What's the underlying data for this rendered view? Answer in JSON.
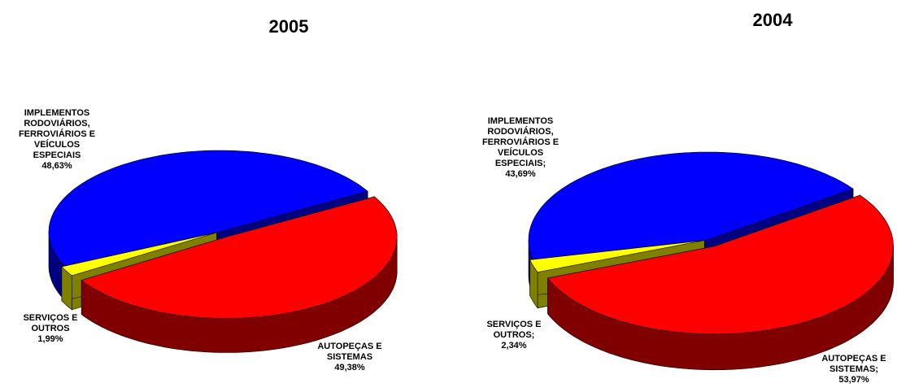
{
  "chart_data": [
    {
      "type": "pie",
      "title": "2005",
      "categories": [
        "AUTOPEÇAS E SISTEMAS",
        "SERVIÇOS E OUTROS",
        "IMPLEMENTOS RODOVIÁRIOS, FERROVIÁRIOS E VEÍCULOS ESPECIAIS"
      ],
      "values": [
        49.38,
        1.99,
        48.63
      ],
      "value_labels": [
        "49,38%",
        "1,99%",
        "48,63%"
      ],
      "colors": [
        "#ff0000",
        "#ffff00",
        "#0000ff"
      ]
    },
    {
      "type": "pie",
      "title": "2004",
      "categories": [
        "AUTOPEÇAS E SISTEMAS;",
        "SERVIÇOS E OUTROS;",
        "IMPLEMENTOS RODOVIÁRIOS, FERROVIÁRIOS E VEÍCULOS ESPECIAIS;"
      ],
      "values": [
        53.97,
        2.34,
        43.69
      ],
      "value_labels": [
        "53,97%",
        "2,34%",
        "43,69%"
      ],
      "colors": [
        "#ff0000",
        "#ffff00",
        "#0000ff"
      ]
    }
  ]
}
